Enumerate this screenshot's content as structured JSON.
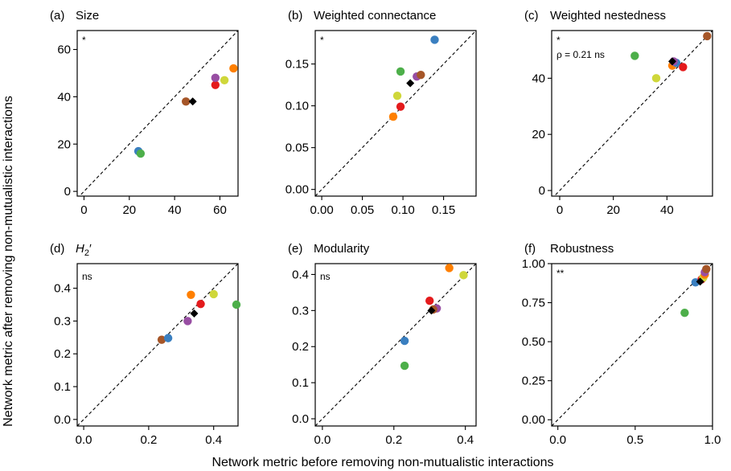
{
  "figure": {
    "ylabel": "Network metric after removing non-mutualistic interactions",
    "xlabel": "Network metric before removing non-mutualistic interactions"
  },
  "colors": {
    "blue": "#3A7FC0",
    "green": "#4DAF4A",
    "orange": "#FF7F00",
    "red": "#E41A1C",
    "purple": "#984EA3",
    "yellow": "#CFD73A",
    "brown": "#A65628",
    "black": "#000000"
  },
  "chart_data": [
    {
      "type": "scatter",
      "letter": "(a)",
      "title": "Size",
      "title_italic": false,
      "significance": "*",
      "annotation": "",
      "xlim": [
        -3,
        68
      ],
      "ylim": [
        -2,
        68
      ],
      "xticks": [
        0,
        20,
        40,
        60
      ],
      "xtick_labels": [
        "0",
        "20",
        "40",
        "60"
      ],
      "yticks": [
        0,
        20,
        40,
        60
      ],
      "ytick_labels": [
        "0",
        "20",
        "40",
        "60"
      ],
      "diagonal": true,
      "points": [
        {
          "x": 24,
          "y": 17,
          "color": "blue"
        },
        {
          "x": 25,
          "y": 16,
          "color": "green"
        },
        {
          "x": 45,
          "y": 38,
          "color": "brown"
        },
        {
          "x": 58,
          "y": 45,
          "color": "red"
        },
        {
          "x": 58,
          "y": 48,
          "color": "purple"
        },
        {
          "x": 62,
          "y": 47,
          "color": "yellow"
        },
        {
          "x": 66,
          "y": 52,
          "color": "orange"
        },
        {
          "x": 48,
          "y": 38,
          "color": "black",
          "marker": "diamond"
        }
      ]
    },
    {
      "type": "scatter",
      "letter": "(b)",
      "title": "Weighted connectance",
      "title_italic": false,
      "significance": "*",
      "annotation": "",
      "xlim": [
        -0.008,
        0.19
      ],
      "ylim": [
        -0.008,
        0.19
      ],
      "xticks": [
        0,
        0.05,
        0.1,
        0.15
      ],
      "xtick_labels": [
        "0.00",
        "0.05",
        "0.10",
        "0.15"
      ],
      "yticks": [
        0,
        0.05,
        0.1,
        0.15
      ],
      "ytick_labels": [
        "0.00",
        "0.05",
        "0.10",
        "0.15"
      ],
      "diagonal": true,
      "points": [
        {
          "x": 0.088,
          "y": 0.087,
          "color": "orange"
        },
        {
          "x": 0.093,
          "y": 0.112,
          "color": "yellow"
        },
        {
          "x": 0.097,
          "y": 0.099,
          "color": "red"
        },
        {
          "x": 0.097,
          "y": 0.141,
          "color": "green"
        },
        {
          "x": 0.117,
          "y": 0.135,
          "color": "purple"
        },
        {
          "x": 0.122,
          "y": 0.137,
          "color": "brown"
        },
        {
          "x": 0.139,
          "y": 0.179,
          "color": "blue"
        },
        {
          "x": 0.109,
          "y": 0.127,
          "color": "black",
          "marker": "diamond"
        }
      ]
    },
    {
      "type": "scatter",
      "letter": "(c)",
      "title": "Weighted nestedness",
      "title_italic": false,
      "significance": "*",
      "annotation": "ρ = 0.21 ns",
      "xlim": [
        -3,
        57
      ],
      "ylim": [
        -2,
        57
      ],
      "xticks": [
        0,
        20,
        40
      ],
      "xtick_labels": [
        "0",
        "20",
        "40"
      ],
      "yticks": [
        0,
        20,
        40
      ],
      "ytick_labels": [
        "0",
        "20",
        "40"
      ],
      "diagonal": true,
      "points": [
        {
          "x": 28,
          "y": 48,
          "color": "green"
        },
        {
          "x": 36,
          "y": 40,
          "color": "yellow"
        },
        {
          "x": 42,
          "y": 44.5,
          "color": "orange"
        },
        {
          "x": 43.5,
          "y": 45.5,
          "color": "blue"
        },
        {
          "x": 42.5,
          "y": 46,
          "color": "purple"
        },
        {
          "x": 46,
          "y": 44,
          "color": "red"
        },
        {
          "x": 55,
          "y": 55,
          "color": "brown"
        },
        {
          "x": 42,
          "y": 46,
          "color": "black",
          "marker": "diamond"
        }
      ]
    },
    {
      "type": "scatter",
      "letter": "(d)",
      "title": "H2′",
      "title_italic": true,
      "significance": "ns",
      "annotation": "",
      "xlim": [
        -0.02,
        0.475
      ],
      "ylim": [
        -0.02,
        0.475
      ],
      "xticks": [
        0,
        0.2,
        0.4
      ],
      "xtick_labels": [
        "0.0",
        "0.2",
        "0.4"
      ],
      "yticks": [
        0,
        0.1,
        0.2,
        0.3,
        0.4
      ],
      "ytick_labels": [
        "0.0",
        "0.1",
        "0.2",
        "0.3",
        "0.4"
      ],
      "diagonal": true,
      "points": [
        {
          "x": 0.24,
          "y": 0.243,
          "color": "brown"
        },
        {
          "x": 0.26,
          "y": 0.248,
          "color": "blue"
        },
        {
          "x": 0.32,
          "y": 0.3,
          "color": "purple"
        },
        {
          "x": 0.33,
          "y": 0.38,
          "color": "orange"
        },
        {
          "x": 0.36,
          "y": 0.352,
          "color": "red"
        },
        {
          "x": 0.4,
          "y": 0.382,
          "color": "yellow"
        },
        {
          "x": 0.47,
          "y": 0.35,
          "color": "green"
        },
        {
          "x": 0.34,
          "y": 0.323,
          "color": "black",
          "marker": "diamond"
        }
      ]
    },
    {
      "type": "scatter",
      "letter": "(e)",
      "title": "Modularity",
      "title_italic": false,
      "significance": "ns",
      "annotation": "",
      "xlim": [
        -0.02,
        0.43
      ],
      "ylim": [
        -0.02,
        0.43
      ],
      "xticks": [
        0,
        0.2,
        0.4
      ],
      "xtick_labels": [
        "0.0",
        "0.2",
        "0.4"
      ],
      "yticks": [
        0,
        0.1,
        0.2,
        0.3,
        0.4
      ],
      "ytick_labels": [
        "0.0",
        "0.1",
        "0.2",
        "0.3",
        "0.4"
      ],
      "diagonal": true,
      "points": [
        {
          "x": 0.23,
          "y": 0.147,
          "color": "green"
        },
        {
          "x": 0.23,
          "y": 0.216,
          "color": "blue"
        },
        {
          "x": 0.3,
          "y": 0.327,
          "color": "red"
        },
        {
          "x": 0.32,
          "y": 0.306,
          "color": "purple"
        },
        {
          "x": 0.355,
          "y": 0.418,
          "color": "orange"
        },
        {
          "x": 0.395,
          "y": 0.398,
          "color": "yellow"
        },
        {
          "x": 0.31,
          "y": 0.303,
          "color": "brown"
        },
        {
          "x": 0.305,
          "y": 0.3,
          "color": "black",
          "marker": "diamond"
        }
      ]
    },
    {
      "type": "scatter",
      "letter": "(f)",
      "title": "Robustness",
      "title_italic": false,
      "significance": "**",
      "annotation": "",
      "xlim": [
        -0.04,
        1.0
      ],
      "ylim": [
        -0.04,
        1.0
      ],
      "xticks": [
        0,
        0.5,
        1
      ],
      "xtick_labels": [
        "0.0",
        "0.5",
        "1.0"
      ],
      "yticks": [
        0,
        0.25,
        0.5,
        0.75,
        1
      ],
      "ytick_labels": [
        "0.00",
        "0.25",
        "0.50",
        "0.75",
        "1.00"
      ],
      "diagonal": true,
      "points": [
        {
          "x": 0.82,
          "y": 0.685,
          "color": "green"
        },
        {
          "x": 0.89,
          "y": 0.88,
          "color": "blue"
        },
        {
          "x": 0.93,
          "y": 0.9,
          "color": "red"
        },
        {
          "x": 0.94,
          "y": 0.91,
          "color": "yellow"
        },
        {
          "x": 0.95,
          "y": 0.93,
          "color": "orange"
        },
        {
          "x": 0.95,
          "y": 0.945,
          "color": "purple"
        },
        {
          "x": 0.96,
          "y": 0.965,
          "color": "brown"
        },
        {
          "x": 0.92,
          "y": 0.885,
          "color": "black",
          "marker": "diamond"
        }
      ]
    }
  ]
}
